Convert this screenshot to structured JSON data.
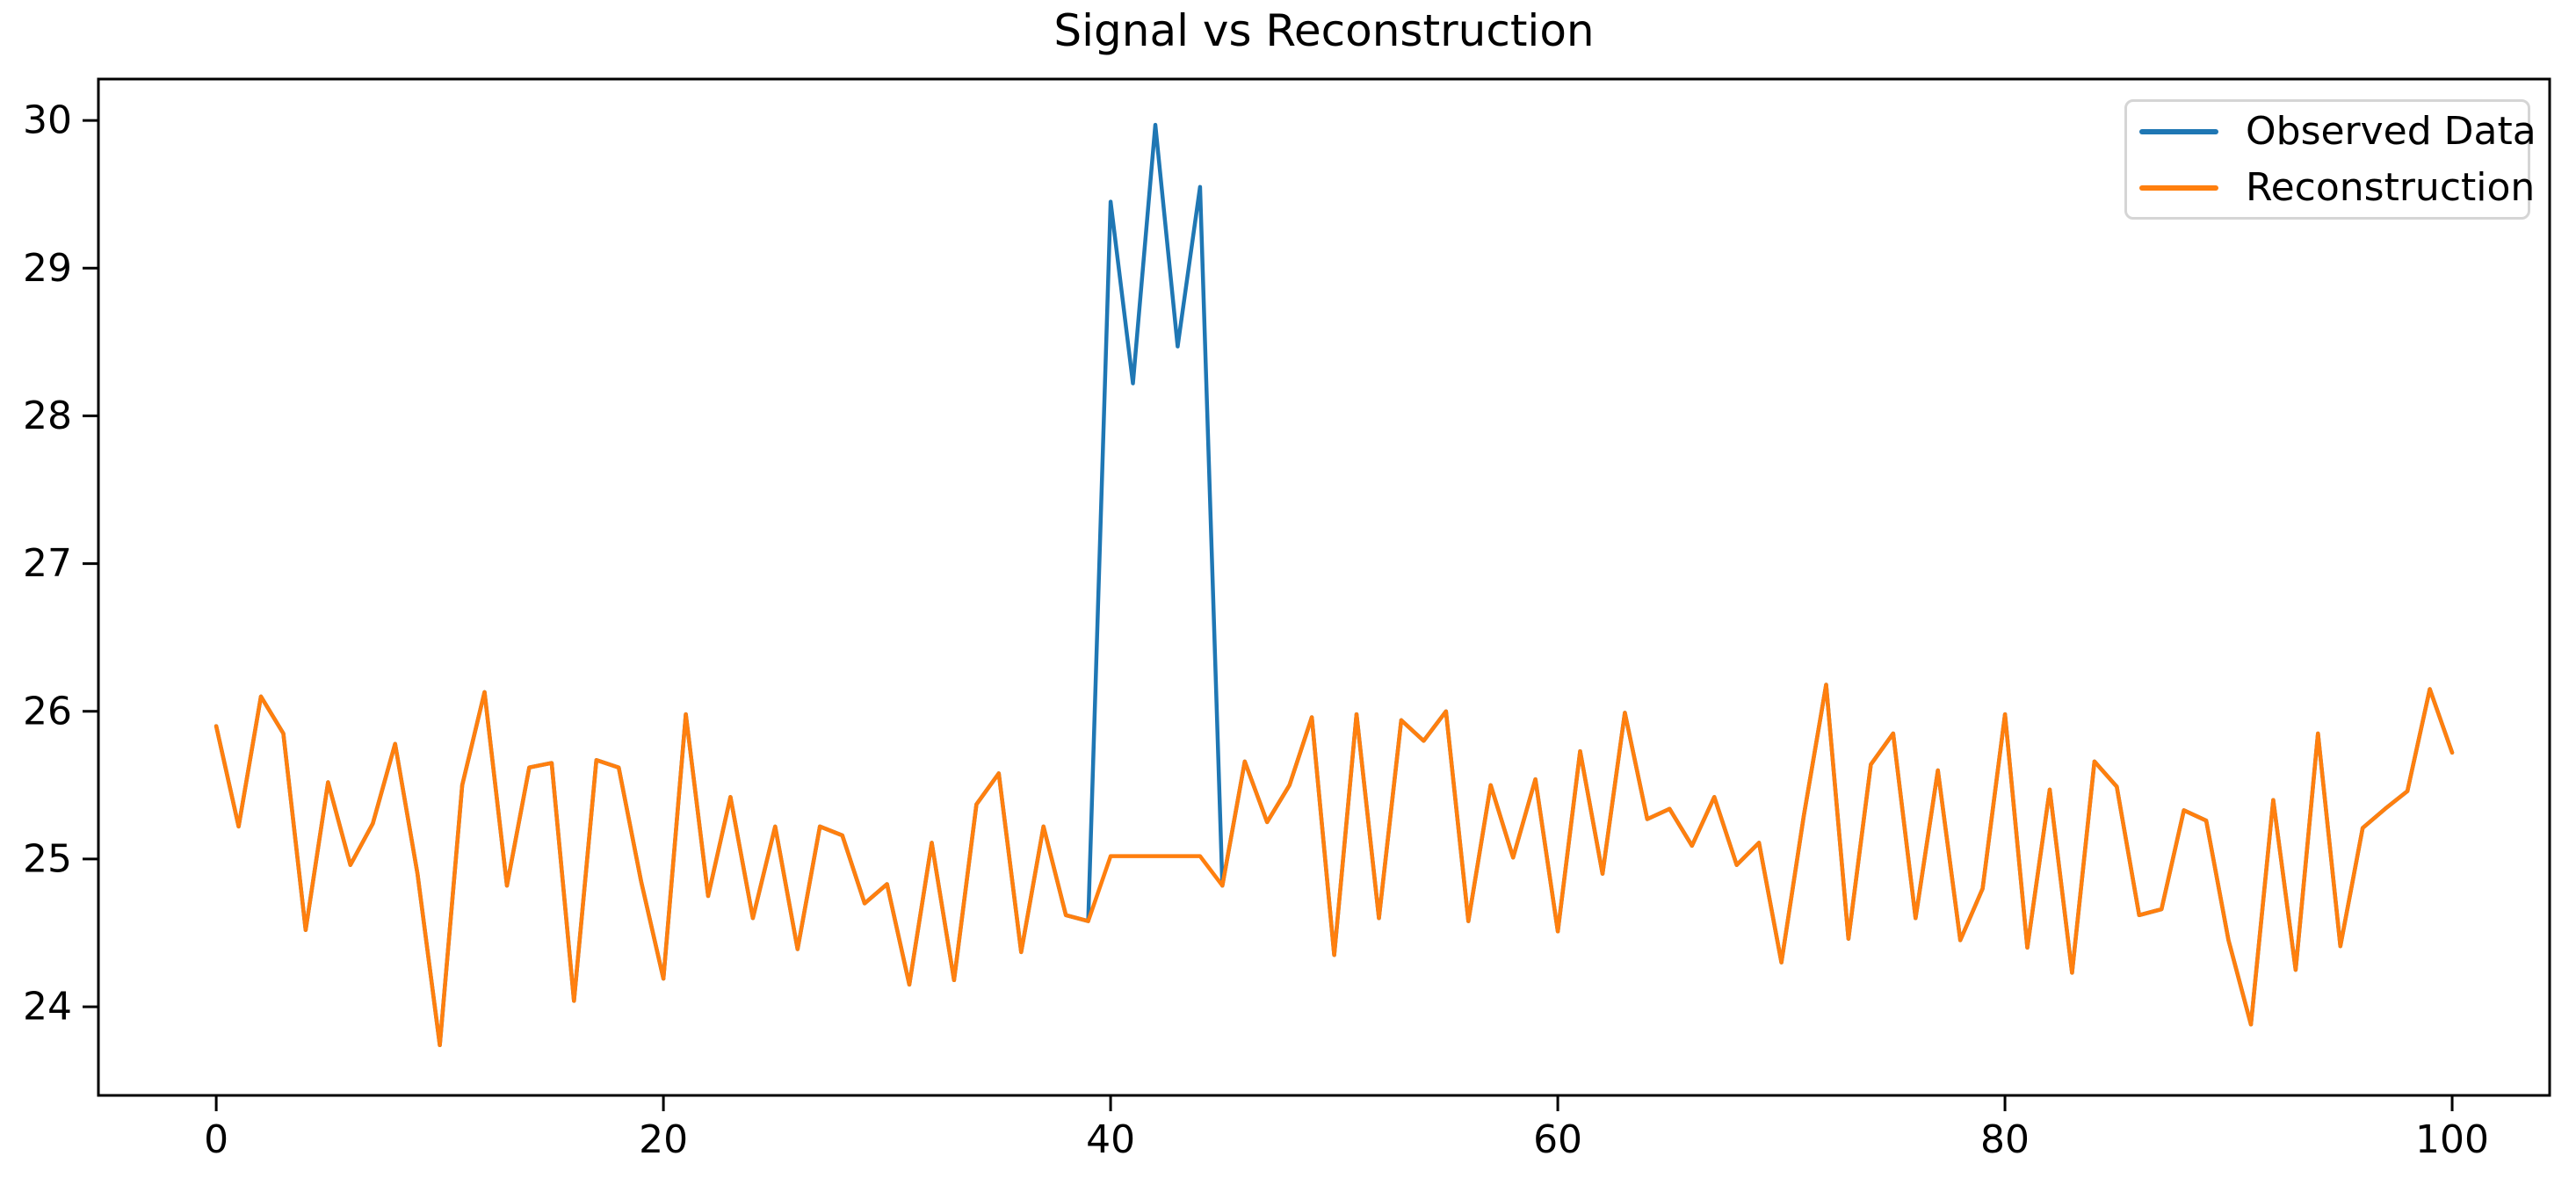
{
  "title": "Signal vs Reconstruction",
  "colors": {
    "observed": "#1f77b4",
    "reconstruction": "#ff7f0e",
    "axis": "#000000",
    "legend_border": "#d5d5d5",
    "background": "#ffffff"
  },
  "legend": {
    "items": [
      {
        "label": "Observed Data",
        "series": "observed",
        "color": "#1f77b4"
      },
      {
        "label": "Reconstruction",
        "series": "reconstruction",
        "color": "#ff7f0e"
      }
    ]
  },
  "chart_data": {
    "type": "line",
    "title": "Signal vs Reconstruction",
    "xlabel": "",
    "ylabel": "",
    "grid": false,
    "legend_position": "upper right",
    "xlim": [
      -5.27,
      104.36
    ],
    "ylim": [
      23.4,
      30.28
    ],
    "xticks": [
      0,
      20,
      40,
      60,
      80,
      100
    ],
    "yticks": [
      24,
      25,
      26,
      27,
      28,
      29,
      30
    ],
    "x": [
      0,
      1,
      2,
      3,
      4,
      5,
      6,
      7,
      8,
      9,
      10,
      11,
      12,
      13,
      14,
      15,
      16,
      17,
      18,
      19,
      20,
      21,
      22,
      23,
      24,
      25,
      26,
      27,
      28,
      29,
      30,
      31,
      32,
      33,
      34,
      35,
      36,
      37,
      38,
      39,
      40,
      41,
      42,
      43,
      44,
      45,
      46,
      47,
      48,
      49,
      50,
      51,
      52,
      53,
      54,
      55,
      56,
      57,
      58,
      59,
      60,
      61,
      62,
      63,
      64,
      65,
      66,
      67,
      68,
      69,
      70,
      71,
      72,
      73,
      74,
      75,
      76,
      77,
      78,
      79,
      80,
      81,
      82,
      83,
      84,
      85,
      86,
      87,
      88,
      89,
      90,
      91,
      92,
      93,
      94,
      95,
      96,
      97,
      98,
      99,
      100
    ],
    "series": [
      {
        "name": "Observed Data",
        "color": "#1f77b4",
        "values": [
          25.9,
          25.22,
          26.1,
          25.85,
          24.52,
          25.52,
          24.96,
          25.24,
          25.78,
          24.9,
          23.74,
          25.5,
          26.13,
          24.82,
          25.62,
          25.65,
          24.04,
          25.67,
          25.62,
          24.85,
          24.19,
          25.98,
          24.75,
          25.42,
          24.6,
          25.22,
          24.39,
          25.22,
          25.16,
          24.7,
          24.83,
          24.15,
          25.11,
          24.18,
          25.37,
          25.58,
          24.37,
          25.22,
          24.62,
          24.58,
          29.45,
          28.22,
          29.97,
          28.47,
          29.55,
          24.82,
          25.66,
          25.25,
          25.5,
          25.96,
          24.35,
          25.98,
          24.6,
          25.94,
          25.8,
          26.0,
          24.58,
          25.5,
          25.01,
          25.54,
          24.51,
          25.73,
          24.9,
          25.99,
          25.27,
          25.34,
          25.09,
          25.42,
          24.96,
          25.11,
          24.3,
          25.29,
          26.18,
          24.46,
          25.64,
          25.85,
          24.6,
          25.6,
          24.45,
          24.8,
          25.98,
          24.4,
          25.47,
          24.23,
          25.66,
          25.49,
          24.62,
          24.66,
          25.33,
          25.26,
          24.45,
          23.88,
          25.4,
          24.25,
          25.85,
          24.41,
          25.21,
          25.34,
          25.46,
          26.15,
          25.72
        ]
      },
      {
        "name": "Reconstruction",
        "color": "#ff7f0e",
        "values": [
          25.9,
          25.22,
          26.1,
          25.85,
          24.52,
          25.52,
          24.96,
          25.24,
          25.78,
          24.9,
          23.74,
          25.5,
          26.13,
          24.82,
          25.62,
          25.65,
          24.04,
          25.67,
          25.62,
          24.85,
          24.19,
          25.98,
          24.75,
          25.42,
          24.6,
          25.22,
          24.39,
          25.22,
          25.16,
          24.7,
          24.83,
          24.15,
          25.11,
          24.18,
          25.37,
          25.58,
          24.37,
          25.22,
          24.62,
          24.58,
          25.02,
          25.02,
          25.02,
          25.02,
          25.02,
          24.82,
          25.66,
          25.25,
          25.5,
          25.96,
          24.35,
          25.98,
          24.6,
          25.94,
          25.8,
          26.0,
          24.58,
          25.5,
          25.01,
          25.54,
          24.51,
          25.73,
          24.9,
          25.99,
          25.27,
          25.34,
          25.09,
          25.42,
          24.96,
          25.11,
          24.3,
          25.29,
          26.18,
          24.46,
          25.64,
          25.85,
          24.6,
          25.6,
          24.45,
          24.8,
          25.98,
          24.4,
          25.47,
          24.23,
          25.66,
          25.49,
          24.62,
          24.66,
          25.33,
          25.26,
          24.45,
          23.88,
          25.4,
          24.25,
          25.85,
          24.41,
          25.21,
          25.34,
          25.46,
          26.15,
          25.72
        ]
      }
    ],
    "anomaly_window": {
      "x_start": 40,
      "x_end": 44,
      "reconstruction_level": 25.02
    }
  }
}
